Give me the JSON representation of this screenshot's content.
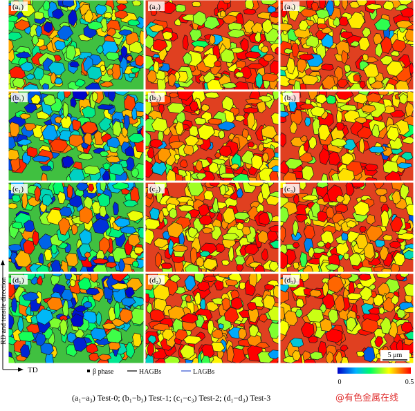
{
  "figure": {
    "panels": [
      [
        "(a₁)",
        "(a₂)",
        "(a₃)"
      ],
      [
        "(b₁)",
        "(b₂)",
        "(b₃)"
      ],
      [
        "(c₁)",
        "(c₂)",
        "(c₃)"
      ],
      [
        "(d₁)",
        "(d₂)",
        "(d₃)"
      ]
    ],
    "axis_vertical": "RD and tensile direction",
    "axis_horizontal": "TD",
    "legend": [
      "β phase",
      "HAGBs",
      "LAGBs"
    ],
    "colorbar_ticks": [
      0,
      0.5
    ],
    "scale_bar": "5 μm",
    "caption": "(a₁−a₃) Test-0; (b₁−b₃) Test-1; (c₁−c₃) Test-2; (d₁−d₃) Test-3",
    "watermark": "@有色金属在线"
  }
}
